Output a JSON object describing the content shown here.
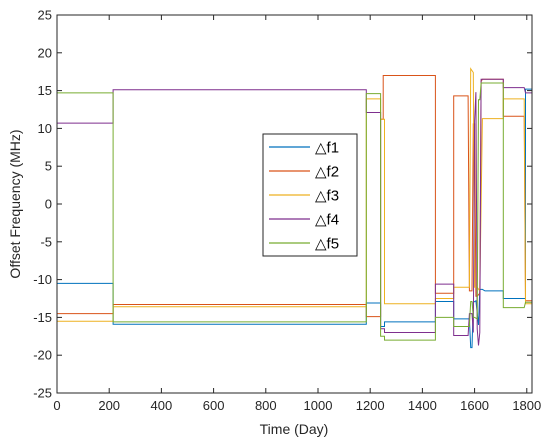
{
  "chart_data": {
    "type": "line",
    "title": "",
    "xlabel": "Time (Day)",
    "ylabel": "Offset Frequency (MHz)",
    "xlim": [
      0,
      1820
    ],
    "ylim": [
      -25,
      25
    ],
    "xticks": [
      0,
      200,
      400,
      600,
      800,
      1000,
      1200,
      1400,
      1600,
      1800
    ],
    "yticks": [
      -25,
      -20,
      -15,
      -10,
      -5,
      0,
      5,
      10,
      15,
      20,
      25
    ],
    "grid": false,
    "legend_position": "center-right",
    "series": [
      {
        "name": "△f1",
        "color": "#0072BD",
        "points": [
          [
            0,
            -10.5
          ],
          [
            215,
            -10.5
          ],
          [
            215,
            -15.9
          ],
          [
            1185,
            -15.9
          ],
          [
            1185,
            -13.1
          ],
          [
            1240,
            -13.1
          ],
          [
            1240,
            -16.2
          ],
          [
            1255,
            -16.2
          ],
          [
            1255,
            -15.6
          ],
          [
            1450,
            -15.6
          ],
          [
            1450,
            -12.9
          ],
          [
            1520,
            -12.9
          ],
          [
            1520,
            -15.2
          ],
          [
            1580,
            -15.2
          ],
          [
            1585,
            -19.0
          ],
          [
            1590,
            -19.0
          ],
          [
            1595,
            -13.0
          ],
          [
            1605,
            -12.8
          ],
          [
            1615,
            -16.0
          ],
          [
            1620,
            -11.3
          ],
          [
            1630,
            -11.3
          ],
          [
            1640,
            -11.5
          ],
          [
            1710,
            -11.5
          ],
          [
            1710,
            -12.5
          ],
          [
            1795,
            -12.5
          ],
          [
            1795,
            15.2
          ],
          [
            1820,
            15.2
          ]
        ]
      },
      {
        "name": "△f2",
        "color": "#D95319",
        "points": [
          [
            0,
            -14.5
          ],
          [
            215,
            -14.5
          ],
          [
            215,
            -13.3
          ],
          [
            1185,
            -13.3
          ],
          [
            1185,
            -14.9
          ],
          [
            1240,
            -14.9
          ],
          [
            1240,
            11.2
          ],
          [
            1250,
            11.2
          ],
          [
            1250,
            17.0
          ],
          [
            1450,
            17.0
          ],
          [
            1450,
            -11.8
          ],
          [
            1520,
            -11.8
          ],
          [
            1520,
            14.3
          ],
          [
            1575,
            14.3
          ],
          [
            1580,
            -11.5
          ],
          [
            1590,
            -11.5
          ],
          [
            1595,
            10.6
          ],
          [
            1600,
            10.6
          ],
          [
            1605,
            -12.2
          ],
          [
            1610,
            -12.2
          ],
          [
            1620,
            -11.8
          ],
          [
            1625,
            16.2
          ],
          [
            1630,
            16.5
          ],
          [
            1710,
            16.5
          ],
          [
            1710,
            11.6
          ],
          [
            1790,
            11.6
          ],
          [
            1795,
            -12.8
          ],
          [
            1820,
            -12.8
          ]
        ]
      },
      {
        "name": "△f3",
        "color": "#EDB120",
        "points": [
          [
            0,
            -15.5
          ],
          [
            215,
            -15.5
          ],
          [
            215,
            -13.6
          ],
          [
            1185,
            -13.6
          ],
          [
            1185,
            13.9
          ],
          [
            1240,
            13.9
          ],
          [
            1240,
            11.2
          ],
          [
            1255,
            11.2
          ],
          [
            1255,
            -13.2
          ],
          [
            1450,
            -13.2
          ],
          [
            1450,
            -12.5
          ],
          [
            1520,
            -12.5
          ],
          [
            1520,
            -11.0
          ],
          [
            1580,
            -11.0
          ],
          [
            1585,
            17.9
          ],
          [
            1595,
            17.4
          ],
          [
            1600,
            -11.0
          ],
          [
            1610,
            -11.0
          ],
          [
            1620,
            -11.5
          ],
          [
            1630,
            11.3
          ],
          [
            1710,
            11.3
          ],
          [
            1710,
            13.9
          ],
          [
            1790,
            13.9
          ],
          [
            1795,
            -13.2
          ],
          [
            1820,
            -13.2
          ]
        ]
      },
      {
        "name": "△f4",
        "color": "#7E2F8E",
        "points": [
          [
            0,
            10.7
          ],
          [
            215,
            10.7
          ],
          [
            215,
            15.1
          ],
          [
            1185,
            15.1
          ],
          [
            1185,
            12.1
          ],
          [
            1240,
            12.1
          ],
          [
            1240,
            -16.5
          ],
          [
            1255,
            -16.5
          ],
          [
            1255,
            -17.0
          ],
          [
            1450,
            -17.0
          ],
          [
            1450,
            -10.6
          ],
          [
            1520,
            -10.6
          ],
          [
            1520,
            -17.4
          ],
          [
            1575,
            -17.4
          ],
          [
            1580,
            -14.5
          ],
          [
            1590,
            -14.5
          ],
          [
            1595,
            -17.0
          ],
          [
            1600,
            11.0
          ],
          [
            1605,
            14.8
          ],
          [
            1610,
            -16.5
          ],
          [
            1615,
            -18.7
          ],
          [
            1620,
            -17.0
          ],
          [
            1625,
            16.5
          ],
          [
            1710,
            16.5
          ],
          [
            1710,
            15.4
          ],
          [
            1790,
            15.4
          ],
          [
            1795,
            14.7
          ],
          [
            1820,
            14.7
          ]
        ]
      },
      {
        "name": "△f5",
        "color": "#77AC30",
        "points": [
          [
            0,
            14.7
          ],
          [
            215,
            14.7
          ],
          [
            215,
            -15.6
          ],
          [
            1185,
            -15.6
          ],
          [
            1185,
            14.6
          ],
          [
            1240,
            14.6
          ],
          [
            1240,
            -17.5
          ],
          [
            1255,
            -17.5
          ],
          [
            1255,
            -18.0
          ],
          [
            1450,
            -18.0
          ],
          [
            1450,
            -15.0
          ],
          [
            1520,
            -15.0
          ],
          [
            1520,
            -16.2
          ],
          [
            1580,
            -16.2
          ],
          [
            1585,
            -12.9
          ],
          [
            1590,
            -12.9
          ],
          [
            1595,
            -15.0
          ],
          [
            1600,
            -15.0
          ],
          [
            1610,
            -15.2
          ],
          [
            1615,
            13.8
          ],
          [
            1620,
            13.8
          ],
          [
            1625,
            16.0
          ],
          [
            1710,
            16.0
          ],
          [
            1710,
            -13.7
          ],
          [
            1790,
            -13.7
          ],
          [
            1795,
            -13.0
          ],
          [
            1820,
            -13.0
          ]
        ]
      }
    ]
  }
}
